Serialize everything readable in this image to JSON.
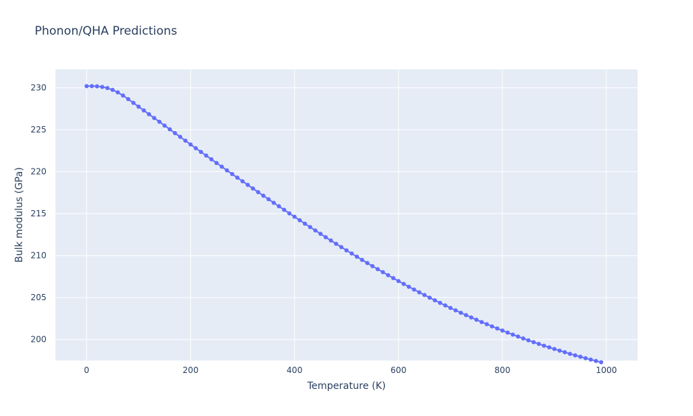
{
  "chart_data": {
    "type": "line",
    "title": "Phonon/QHA Predictions",
    "xlabel": "Temperature (K)",
    "ylabel": "Bulk modulus (GPa)",
    "xlim": [
      -60,
      1060
    ],
    "ylim": [
      197.5,
      232.2
    ],
    "x_ticks": [
      0,
      200,
      400,
      600,
      800,
      1000
    ],
    "y_ticks": [
      200,
      205,
      210,
      215,
      220,
      225,
      230
    ],
    "grid": true,
    "legend": "none",
    "colors": {
      "plot_bg": "#E5ECF6",
      "grid": "#FFFFFF",
      "series": "#636EFA",
      "text": "#2a3f5f"
    },
    "series": [
      {
        "mode": "lines+markers",
        "x": [
          0,
          10,
          20,
          30,
          40,
          50,
          60,
          70,
          80,
          90,
          100,
          110,
          120,
          130,
          140,
          150,
          160,
          170,
          180,
          190,
          200,
          210,
          220,
          230,
          240,
          250,
          260,
          270,
          280,
          290,
          300,
          310,
          320,
          330,
          340,
          350,
          360,
          370,
          380,
          390,
          400,
          410,
          420,
          430,
          440,
          450,
          460,
          470,
          480,
          490,
          500,
          510,
          520,
          530,
          540,
          550,
          560,
          570,
          580,
          590,
          600,
          610,
          620,
          630,
          640,
          650,
          660,
          670,
          680,
          690,
          700,
          710,
          720,
          730,
          740,
          750,
          760,
          770,
          780,
          790,
          800,
          810,
          820,
          830,
          840,
          850,
          860,
          870,
          880,
          890,
          900,
          910,
          920,
          930,
          940,
          950,
          960,
          970,
          980,
          990
        ],
        "y": [
          230.2,
          230.2,
          230.18,
          230.1,
          229.97,
          229.75,
          229.45,
          229.08,
          228.65,
          228.2,
          227.75,
          227.3,
          226.85,
          226.4,
          225.95,
          225.5,
          225.05,
          224.6,
          224.15,
          223.7,
          223.25,
          222.8,
          222.36,
          221.92,
          221.48,
          221.04,
          220.6,
          220.16,
          219.72,
          219.29,
          218.86,
          218.43,
          218.0,
          217.57,
          217.14,
          216.72,
          216.3,
          215.88,
          215.46,
          215.04,
          214.63,
          214.22,
          213.81,
          213.4,
          213.0,
          212.6,
          212.2,
          211.8,
          211.41,
          211.02,
          210.63,
          210.25,
          209.87,
          209.49,
          209.12,
          208.75,
          208.39,
          208.03,
          207.67,
          207.32,
          206.97,
          206.63,
          206.29,
          205.96,
          205.63,
          205.31,
          204.99,
          204.68,
          204.37,
          204.07,
          203.77,
          203.48,
          203.19,
          202.91,
          202.63,
          202.36,
          202.09,
          201.83,
          201.57,
          201.32,
          201.07,
          200.83,
          200.59,
          200.36,
          200.13,
          199.91,
          199.69,
          199.48,
          199.27,
          199.07,
          198.87,
          198.68,
          198.49,
          198.3,
          198.12,
          197.95,
          197.78,
          197.61,
          197.45,
          197.29
        ]
      }
    ]
  }
}
